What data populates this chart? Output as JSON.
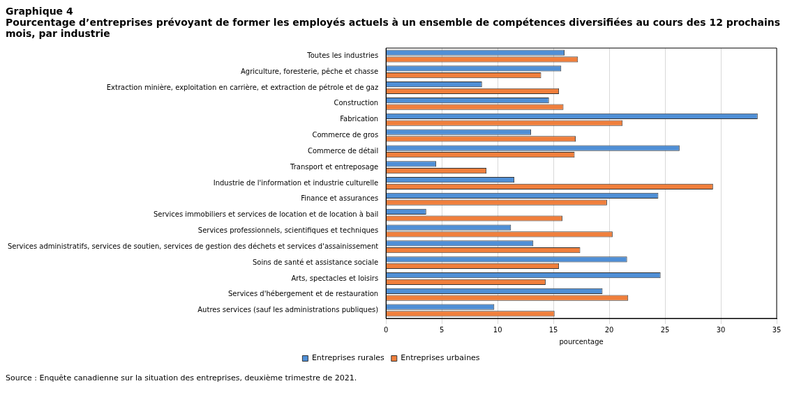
{
  "chart_data": {
    "type": "bar",
    "orientation": "horizontal",
    "title": "Graphique 4",
    "subtitle": "Pourcentage d’entreprises prévoyant de former les employés actuels à un ensemble de compétences diversifiées au cours des 12 prochains mois, par industrie",
    "xlabel": "pourcentage",
    "categories": [
      "Toutes les industries",
      "Agriculture, foresterie, pêche et chasse",
      "Extraction minière, exploitation en carrière, et extraction de pétrole et de gaz",
      "Construction",
      "Fabrication",
      "Commerce de gros",
      "Commerce de détail",
      "Transport et entreposage",
      "Industrie de l'information et industrie culturelle",
      "Finance et assurances",
      "Services immobiliers et services de location et de location à bail",
      "Services professionnels, scientifiques et techniques",
      "Services administratifs, services de soutien, services de gestion des déchets et services d'assainissement",
      "Soins de santé et assistance sociale",
      "Arts, spectacles et loisirs",
      "Services d'hébergement et de restauration",
      "Autres services (sauf les administrations publiques)"
    ],
    "series": [
      {
        "name": "Entreprises rurales",
        "color": "#4f8fd6",
        "values": [
          16.0,
          15.7,
          8.6,
          14.6,
          33.3,
          13.0,
          26.3,
          4.5,
          11.5,
          24.4,
          3.6,
          11.2,
          13.2,
          21.6,
          24.6,
          19.4,
          9.7
        ]
      },
      {
        "name": "Entreprises urbaines",
        "color": "#f07f3c",
        "values": [
          17.2,
          13.9,
          15.5,
          15.9,
          21.2,
          17.0,
          16.9,
          9.0,
          29.3,
          19.8,
          15.8,
          20.3,
          17.4,
          15.5,
          14.3,
          21.7,
          15.1
        ]
      }
    ],
    "xlim": [
      0,
      35
    ],
    "xticks": [
      0,
      5,
      10,
      15,
      20,
      25,
      30,
      35
    ],
    "grid": "x",
    "legend": "bottom",
    "annotations": [
      "Source : Enquête canadienne sur la situation des entreprises, deuxième trimestre de 2021."
    ]
  }
}
